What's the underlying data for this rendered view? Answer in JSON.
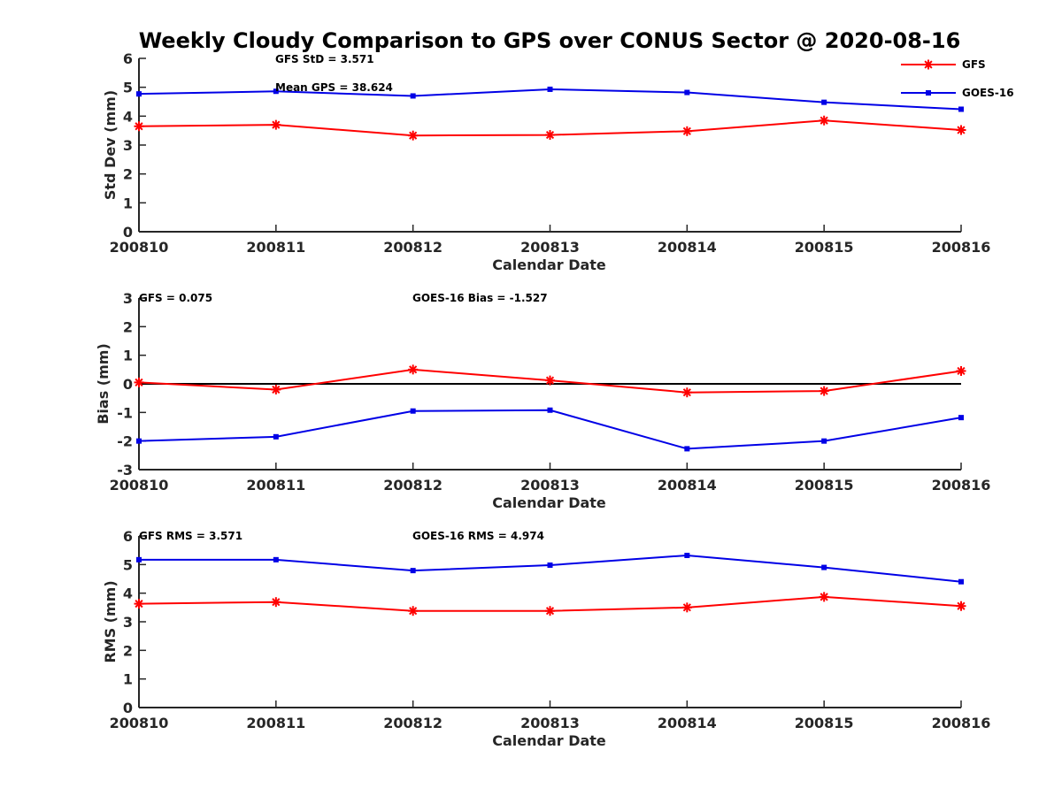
{
  "title": "Weekly Cloudy Comparison to GPS over CONUS Sector @ 2020-08-16",
  "colors": {
    "gfs": "#ff0000",
    "goes": "#0000e6",
    "zero_line": "#000000",
    "axis": "#262626"
  },
  "legend": [
    {
      "name": "GFS",
      "marker": "asterisk"
    },
    {
      "name": "GOES-16",
      "marker": "square"
    }
  ],
  "chart_data": [
    {
      "type": "line",
      "xlabel": "Calendar Date",
      "ylabel": "Std Dev (mm)",
      "ylim": [
        0,
        6
      ],
      "yticks": [
        "0",
        "1",
        "2",
        "3",
        "4",
        "5",
        "6"
      ],
      "categories": [
        "200810",
        "200811",
        "200812",
        "200813",
        "200814",
        "200815",
        "200816"
      ],
      "series": [
        {
          "name": "GFS",
          "values": [
            3.65,
            3.7,
            3.33,
            3.35,
            3.48,
            3.85,
            3.52
          ]
        },
        {
          "name": "GOES-16",
          "values": [
            4.77,
            4.86,
            4.7,
            4.93,
            4.82,
            4.48,
            4.24
          ]
        }
      ],
      "annotations": [
        "GFS StD = 3.571",
        "Mean GPS = 38.624"
      ],
      "zero_line": false
    },
    {
      "type": "line",
      "xlabel": "Calendar Date",
      "ylabel": "Bias (mm)",
      "ylim": [
        -3,
        3
      ],
      "yticks": [
        "-3",
        "-2",
        "-1",
        "0",
        "1",
        "2",
        "3"
      ],
      "categories": [
        "200810",
        "200811",
        "200812",
        "200813",
        "200814",
        "200815",
        "200816"
      ],
      "series": [
        {
          "name": "GFS",
          "values": [
            0.05,
            -0.2,
            0.5,
            0.12,
            -0.3,
            -0.25,
            0.45
          ]
        },
        {
          "name": "GOES-16",
          "values": [
            -2.0,
            -1.85,
            -0.95,
            -0.92,
            -2.27,
            -2.0,
            -1.18
          ]
        }
      ],
      "annotations": [
        "GFS = 0.075",
        "GOES-16 Bias  = -1.527"
      ],
      "zero_line": true
    },
    {
      "type": "line",
      "xlabel": "Calendar Date",
      "ylabel": "RMS (mm)",
      "ylim": [
        0,
        6
      ],
      "yticks": [
        "0",
        "1",
        "2",
        "3",
        "4",
        "5",
        "6"
      ],
      "categories": [
        "200810",
        "200811",
        "200812",
        "200813",
        "200814",
        "200815",
        "200816"
      ],
      "series": [
        {
          "name": "GFS",
          "values": [
            3.63,
            3.69,
            3.38,
            3.38,
            3.5,
            3.87,
            3.55
          ]
        },
        {
          "name": "GOES-16",
          "values": [
            5.17,
            5.17,
            4.79,
            4.98,
            5.32,
            4.9,
            4.4
          ]
        }
      ],
      "annotations": [
        "GFS RMS = 3.571",
        "GOES-16 RMS = 4.974"
      ],
      "zero_line": false
    }
  ]
}
